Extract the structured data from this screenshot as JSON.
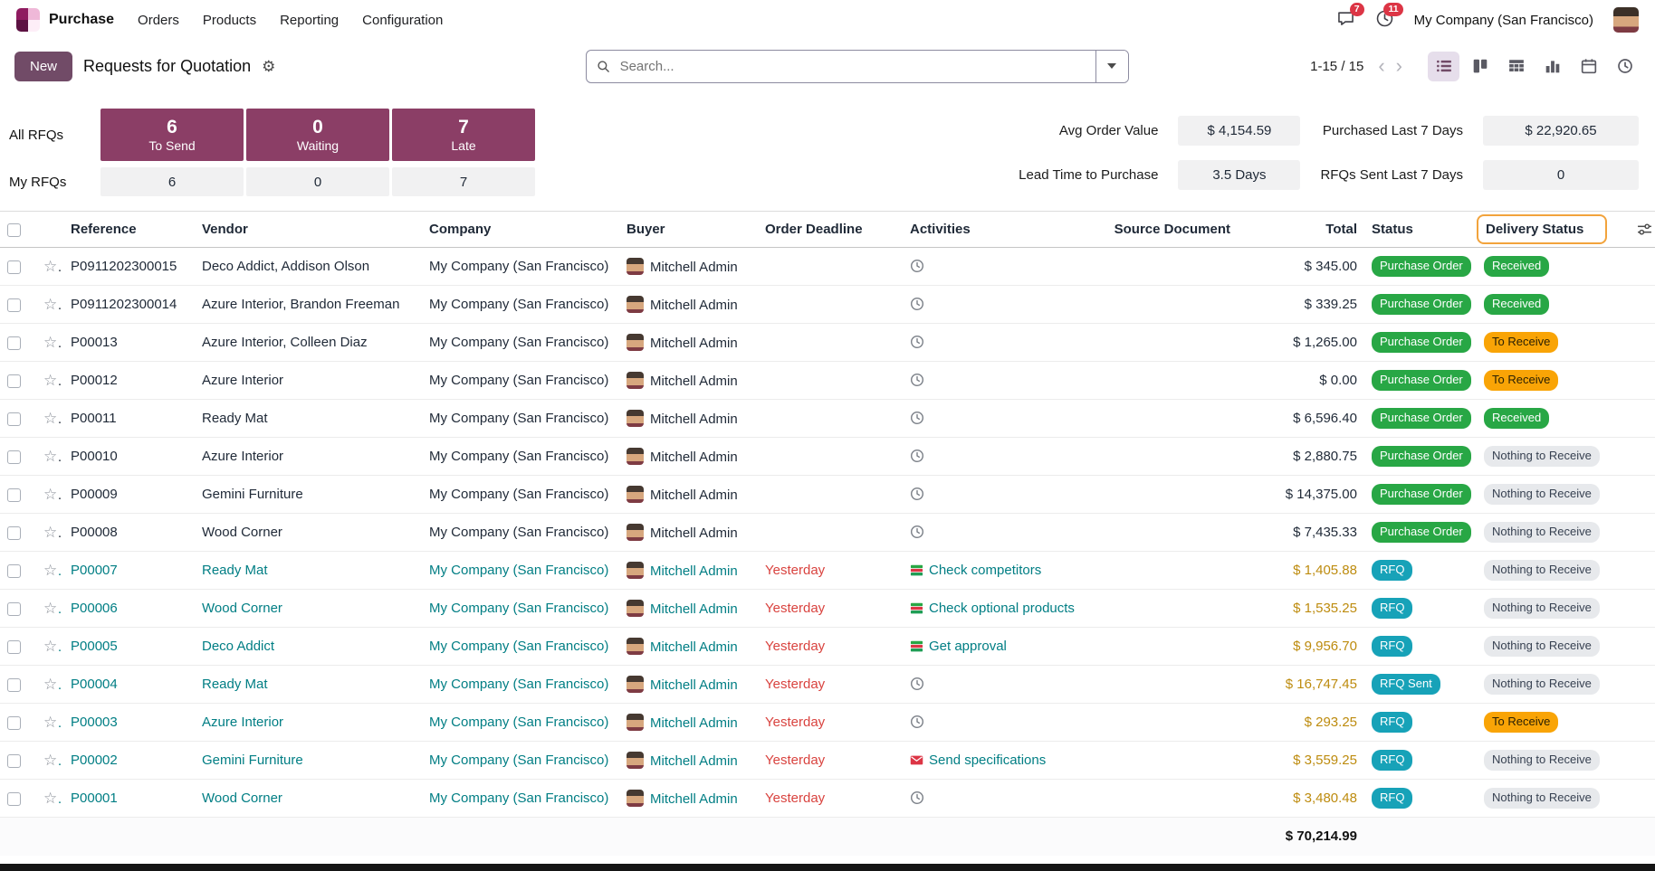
{
  "navbar": {
    "app_name": "Purchase",
    "menus": [
      "Orders",
      "Products",
      "Reporting",
      "Configuration"
    ],
    "messages_badge": "7",
    "activities_badge": "11",
    "company": "My Company (San Francisco)"
  },
  "control_panel": {
    "new_label": "New",
    "title": "Requests for Quotation",
    "search_placeholder": "Search...",
    "pager": "1-15 / 15"
  },
  "view_switcher": {
    "active": "list",
    "views": [
      "list",
      "kanban",
      "pivot",
      "graph",
      "calendar",
      "activity"
    ]
  },
  "dashboard": {
    "all_label": "All RFQs",
    "my_label": "My RFQs",
    "boxes": [
      {
        "value": "6",
        "label": "To Send",
        "my_value": "6"
      },
      {
        "value": "0",
        "label": "Waiting",
        "my_value": "0"
      },
      {
        "value": "7",
        "label": "Late",
        "my_value": "7"
      }
    ],
    "kpis": [
      {
        "label": "Avg Order Value",
        "value": "$ 4,154.59"
      },
      {
        "label": "Purchased Last 7 Days",
        "value": "$ 22,920.65"
      },
      {
        "label": "Lead Time to Purchase",
        "value": "3.5 Days"
      },
      {
        "label": "RFQs Sent Last 7 Days",
        "value": "0"
      }
    ]
  },
  "table": {
    "columns": [
      "Reference",
      "Vendor",
      "Company",
      "Buyer",
      "Order Deadline",
      "Activities",
      "Source Document",
      "Total",
      "Status",
      "Delivery Status"
    ],
    "footer_total": "$ 70,214.99",
    "rows": [
      {
        "reference": "P0911202300015",
        "vendor": "Deco Addict, Addison Olson",
        "company": "My Company (San Francisco)",
        "buyer": "Mitchell Admin",
        "deadline": "",
        "activity_icon": "clock",
        "activity_label": "",
        "source": "",
        "total": "$ 345.00",
        "status": "Purchase Order",
        "status_type": "success",
        "delivery": "Received",
        "delivery_type": "success",
        "late": false
      },
      {
        "reference": "P0911202300014",
        "vendor": "Azure Interior, Brandon Freeman",
        "company": "My Company (San Francisco)",
        "buyer": "Mitchell Admin",
        "deadline": "",
        "activity_icon": "clock",
        "activity_label": "",
        "source": "",
        "total": "$ 339.25",
        "status": "Purchase Order",
        "status_type": "success",
        "delivery": "Received",
        "delivery_type": "success",
        "late": false
      },
      {
        "reference": "P00013",
        "vendor": "Azure Interior, Colleen Diaz",
        "company": "My Company (San Francisco)",
        "buyer": "Mitchell Admin",
        "deadline": "",
        "activity_icon": "clock",
        "activity_label": "",
        "source": "",
        "total": "$ 1,265.00",
        "status": "Purchase Order",
        "status_type": "success",
        "delivery": "To Receive",
        "delivery_type": "warning",
        "late": false
      },
      {
        "reference": "P00012",
        "vendor": "Azure Interior",
        "company": "My Company (San Francisco)",
        "buyer": "Mitchell Admin",
        "deadline": "",
        "activity_icon": "clock",
        "activity_label": "",
        "source": "",
        "total": "$ 0.00",
        "status": "Purchase Order",
        "status_type": "success",
        "delivery": "To Receive",
        "delivery_type": "warning",
        "late": false
      },
      {
        "reference": "P00011",
        "vendor": "Ready Mat",
        "company": "My Company (San Francisco)",
        "buyer": "Mitchell Admin",
        "deadline": "",
        "activity_icon": "clock",
        "activity_label": "",
        "source": "",
        "total": "$ 6,596.40",
        "status": "Purchase Order",
        "status_type": "success",
        "delivery": "Received",
        "delivery_type": "success",
        "late": false
      },
      {
        "reference": "P00010",
        "vendor": "Azure Interior",
        "company": "My Company (San Francisco)",
        "buyer": "Mitchell Admin",
        "deadline": "",
        "activity_icon": "clock",
        "activity_label": "",
        "source": "",
        "total": "$ 2,880.75",
        "status": "Purchase Order",
        "status_type": "success",
        "delivery": "Nothing to Receive",
        "delivery_type": "neutral",
        "late": false
      },
      {
        "reference": "P00009",
        "vendor": "Gemini Furniture",
        "company": "My Company (San Francisco)",
        "buyer": "Mitchell Admin",
        "deadline": "",
        "activity_icon": "clock",
        "activity_label": "",
        "source": "",
        "total": "$ 14,375.00",
        "status": "Purchase Order",
        "status_type": "success",
        "delivery": "Nothing to Receive",
        "delivery_type": "neutral",
        "late": false
      },
      {
        "reference": "P00008",
        "vendor": "Wood Corner",
        "company": "My Company (San Francisco)",
        "buyer": "Mitchell Admin",
        "deadline": "",
        "activity_icon": "clock",
        "activity_label": "",
        "source": "",
        "total": "$ 7,435.33",
        "status": "Purchase Order",
        "status_type": "success",
        "delivery": "Nothing to Receive",
        "delivery_type": "neutral",
        "late": false
      },
      {
        "reference": "P00007",
        "vendor": "Ready Mat",
        "company": "My Company (San Francisco)",
        "buyer": "Mitchell Admin",
        "deadline": "Yesterday",
        "activity_icon": "tasks",
        "activity_label": "Check competitors",
        "source": "",
        "total": "$ 1,405.88",
        "status": "RFQ",
        "status_type": "info",
        "delivery": "Nothing to Receive",
        "delivery_type": "neutral",
        "late": true
      },
      {
        "reference": "P00006",
        "vendor": "Wood Corner",
        "company": "My Company (San Francisco)",
        "buyer": "Mitchell Admin",
        "deadline": "Yesterday",
        "activity_icon": "tasks",
        "activity_label": "Check optional products",
        "source": "",
        "total": "$ 1,535.25",
        "status": "RFQ",
        "status_type": "info",
        "delivery": "Nothing to Receive",
        "delivery_type": "neutral",
        "late": true
      },
      {
        "reference": "P00005",
        "vendor": "Deco Addict",
        "company": "My Company (San Francisco)",
        "buyer": "Mitchell Admin",
        "deadline": "Yesterday",
        "activity_icon": "tasks",
        "activity_label": "Get approval",
        "source": "",
        "total": "$ 9,956.70",
        "status": "RFQ",
        "status_type": "info",
        "delivery": "Nothing to Receive",
        "delivery_type": "neutral",
        "late": true
      },
      {
        "reference": "P00004",
        "vendor": "Ready Mat",
        "company": "My Company (San Francisco)",
        "buyer": "Mitchell Admin",
        "deadline": "Yesterday",
        "activity_icon": "clock",
        "activity_label": "",
        "source": "",
        "total": "$ 16,747.45",
        "status": "RFQ Sent",
        "status_type": "info",
        "delivery": "Nothing to Receive",
        "delivery_type": "neutral",
        "late": true
      },
      {
        "reference": "P00003",
        "vendor": "Azure Interior",
        "company": "My Company (San Francisco)",
        "buyer": "Mitchell Admin",
        "deadline": "Yesterday",
        "activity_icon": "clock",
        "activity_label": "",
        "source": "",
        "total": "$ 293.25",
        "status": "RFQ",
        "status_type": "info",
        "delivery": "To Receive",
        "delivery_type": "warning",
        "late": true
      },
      {
        "reference": "P00002",
        "vendor": "Gemini Furniture",
        "company": "My Company (San Francisco)",
        "buyer": "Mitchell Admin",
        "deadline": "Yesterday",
        "activity_icon": "mail",
        "activity_label": "Send specifications",
        "source": "",
        "total": "$ 3,559.25",
        "status": "RFQ",
        "status_type": "info",
        "delivery": "Nothing to Receive",
        "delivery_type": "neutral",
        "late": true
      },
      {
        "reference": "P00001",
        "vendor": "Wood Corner",
        "company": "My Company (San Francisco)",
        "buyer": "Mitchell Admin",
        "deadline": "Yesterday",
        "activity_icon": "clock",
        "activity_label": "",
        "source": "",
        "total": "$ 3,480.48",
        "status": "RFQ",
        "status_type": "info",
        "delivery": "Nothing to Receive",
        "delivery_type": "neutral",
        "late": true
      }
    ]
  },
  "icons": {
    "messages": "chat-bubble",
    "activities": "clock",
    "title_settings": "gear",
    "favorite": "star-outline",
    "activity_clock": "clock",
    "activity_tasks": "task-list",
    "activity_mail": "envelope",
    "optional_columns": "sliders",
    "search": "magnifier"
  },
  "colors": {
    "primary": "#714B67",
    "dashboard_box": "#8b3e66",
    "status_success": "#28a745",
    "status_info": "#17a2b8",
    "status_warning": "#f9a406",
    "status_neutral": "#e7e9ec",
    "late_row_text": "#017e84",
    "deadline_danger": "#d9433f",
    "late_total": "#bd8b0e",
    "highlight_border": "#f2a33c",
    "badge_red": "#dc3545"
  }
}
